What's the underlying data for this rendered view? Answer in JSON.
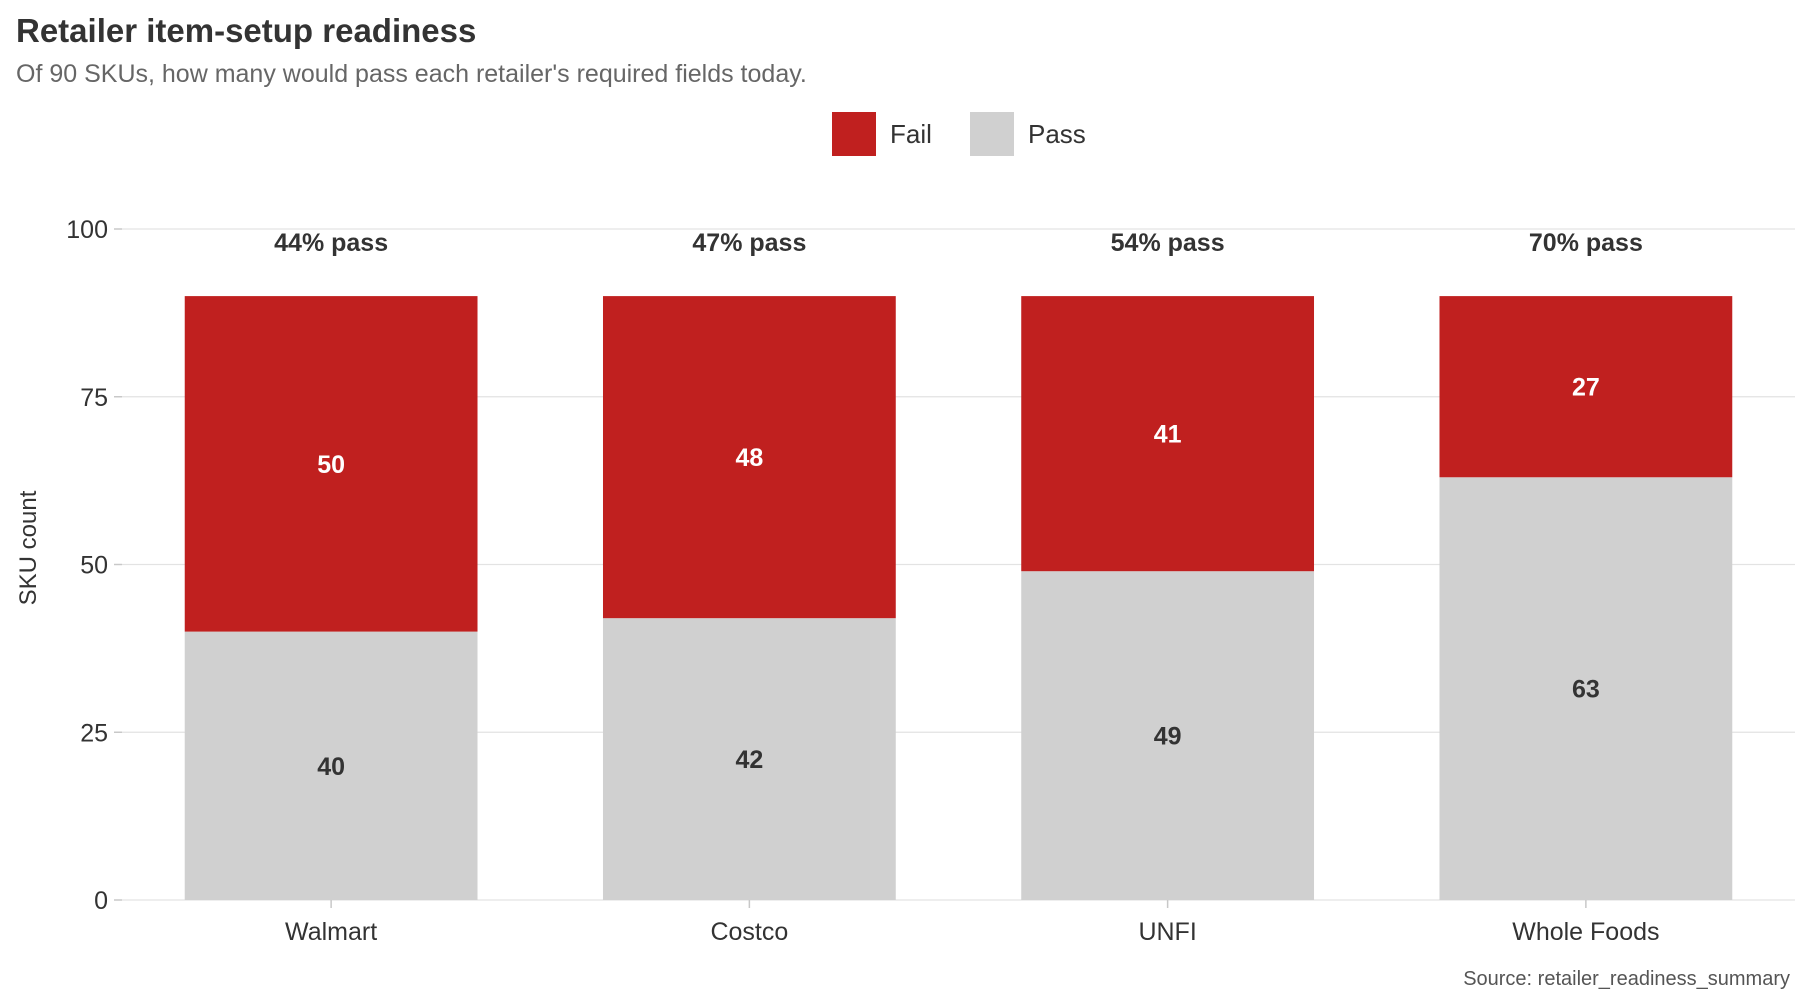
{
  "chart_data": {
    "type": "bar",
    "stacked": true,
    "title": "Retailer item-setup readiness",
    "subtitle": "Of 90 SKUs, how many would pass each retailer's required fields today.",
    "ylabel": "SKU count",
    "xlabel": "",
    "ylim": [
      0,
      100
    ],
    "yticks": [
      0,
      25,
      50,
      75,
      100
    ],
    "grid": true,
    "legend_position": "top-center",
    "categories": [
      "Walmart",
      "Costco",
      "UNFI",
      "Whole Foods"
    ],
    "series": [
      {
        "name": "Pass",
        "values": [
          40,
          42,
          49,
          63
        ],
        "color": "#d0d0d0",
        "label_color": "#333333"
      },
      {
        "name": "Fail",
        "values": [
          50,
          48,
          41,
          27
        ],
        "color": "#c0201f",
        "label_color": "#ffffff"
      }
    ],
    "legend_order": [
      "Fail",
      "Pass"
    ],
    "top_labels": [
      "44% pass",
      "47% pass",
      "54% pass",
      "70% pass"
    ],
    "caption": "Source: retailer_readiness_summary"
  }
}
